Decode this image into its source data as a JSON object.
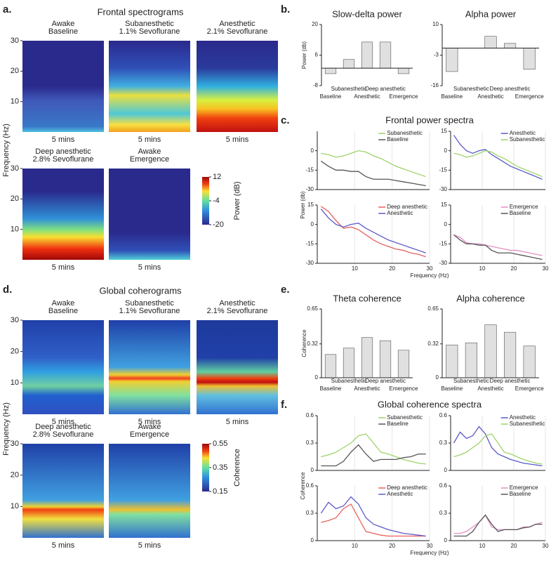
{
  "chart_data": [
    {
      "type": "heatmap",
      "label": "a.",
      "title": "Frontal spectrograms",
      "panels": [
        {
          "title": [
            "Awake",
            "Baseline"
          ]
        },
        {
          "title": [
            "Subanesthetic",
            "1.1% Sevoflurane"
          ]
        },
        {
          "title": [
            "Anesthetic",
            "2.1% Sevoflurane"
          ]
        },
        {
          "title": [
            "Deep anesthetic",
            "2.8% Sevoflurane"
          ]
        },
        {
          "title": [
            "Awake",
            "Emergence"
          ]
        }
      ],
      "xlabel": "5 mins",
      "ylabel": "Frequency (Hz)",
      "ylim": [
        0,
        30
      ],
      "yticks": [
        10,
        20,
        30
      ],
      "colorbar": {
        "label": "Power (dB)",
        "ticks": [
          -20,
          -4,
          12
        ]
      }
    },
    {
      "type": "bar",
      "label": "b.",
      "ylabel": "Power (db)",
      "categories": [
        "Baseline",
        "Subanesthetic",
        "Anesthetic",
        "Deep anesthetic",
        "Emergence"
      ],
      "panels": [
        {
          "title": "Slow-delta power",
          "ylim": [
            -8,
            20
          ],
          "yticks": [
            -8,
            6,
            20
          ],
          "values": [
            -2.5,
            4,
            12,
            12,
            -2.5
          ]
        },
        {
          "title": "Alpha power",
          "ylim": [
            -16,
            10
          ],
          "yticks": [
            -16,
            -3,
            10
          ],
          "values": [
            -10,
            0,
            5,
            2,
            -9
          ]
        }
      ]
    },
    {
      "type": "line",
      "label": "c.",
      "title": "Frontal power spectra",
      "ylabel": "Power (db)",
      "xlabel": "Frequency (Hz)",
      "xlim": [
        0,
        30
      ],
      "xticks": [
        10,
        20,
        30
      ],
      "grid": true,
      "x": [
        1,
        3,
        5,
        7,
        9,
        11,
        13,
        15,
        17,
        19,
        21,
        23,
        25,
        27,
        29
      ],
      "panels": [
        {
          "ylim": [
            -30,
            15
          ],
          "yticks": [
            -30,
            -15,
            0
          ],
          "series": [
            {
              "name": "Subanesthetic",
              "color": "#9ed36b",
              "values": [
                -2,
                -3,
                -5,
                -4,
                -2,
                0,
                -1,
                -4,
                -6,
                -9,
                -12,
                -14,
                -16,
                -18,
                -20
              ]
            },
            {
              "name": "Baseline",
              "color": "#555555",
              "values": [
                -8,
                -12,
                -15,
                -15,
                -16,
                -16,
                -20,
                -22,
                -22,
                -22,
                -23,
                -24,
                -25,
                -26,
                -27
              ]
            }
          ]
        },
        {
          "ylim": [
            -30,
            15
          ],
          "yticks": [
            -30,
            -15,
            0,
            15
          ],
          "series": [
            {
              "name": "Anesthetic",
              "color": "#5a5ac8",
              "values": [
                12,
                5,
                0,
                -2,
                0,
                1,
                -3,
                -6,
                -9,
                -12,
                -14,
                -16,
                -18,
                -20,
                -22
              ]
            },
            {
              "name": "Subanesthetic",
              "color": "#9ed36b",
              "values": [
                -2,
                -3,
                -5,
                -4,
                -2,
                0,
                -1,
                -4,
                -6,
                -9,
                -12,
                -14,
                -16,
                -18,
                -20
              ]
            }
          ]
        },
        {
          "ylim": [
            -30,
            15
          ],
          "yticks": [
            -30,
            -15,
            0,
            15
          ],
          "series": [
            {
              "name": "Deep anesthetic",
              "color": "#e8605e",
              "values": [
                14,
                10,
                3,
                -3,
                -2,
                -4,
                -8,
                -12,
                -15,
                -17,
                -19,
                -20,
                -22,
                -23,
                -25
              ]
            },
            {
              "name": "Anesthetic",
              "color": "#5a5ac8",
              "values": [
                12,
                5,
                0,
                -2,
                0,
                1,
                -3,
                -6,
                -9,
                -12,
                -14,
                -16,
                -18,
                -20,
                -22
              ]
            }
          ]
        },
        {
          "ylim": [
            -30,
            15
          ],
          "yticks": [
            -30,
            -15,
            0,
            15
          ],
          "series": [
            {
              "name": "Emergence",
              "color": "#e58fc6",
              "values": [
                -8,
                -10,
                -14,
                -15,
                -15,
                -16,
                -17,
                -18,
                -19,
                -20,
                -20,
                -21,
                -22,
                -23,
                -24
              ]
            },
            {
              "name": "Baseline",
              "color": "#555555",
              "values": [
                -8,
                -12,
                -15,
                -15,
                -16,
                -16,
                -20,
                -22,
                -22,
                -22,
                -23,
                -24,
                -25,
                -26,
                -27
              ]
            }
          ]
        }
      ]
    },
    {
      "type": "heatmap",
      "label": "d.",
      "title": "Global coherograms",
      "panels": [
        {
          "title": [
            "Awake",
            "Baseline"
          ]
        },
        {
          "title": [
            "Subanesthetic",
            "1.1% Sevoflurane"
          ]
        },
        {
          "title": [
            "Anesthetic",
            "2.1% Sevoflurane"
          ]
        },
        {
          "title": [
            "Deep anesthetic",
            "2.8% Sevoflurane"
          ]
        },
        {
          "title": [
            "Awake",
            "Emergence"
          ]
        }
      ],
      "xlabel": "5 mins",
      "ylabel": "Frequency (Hz)",
      "ylim": [
        0,
        30
      ],
      "yticks": [
        10,
        20,
        30
      ],
      "colorbar": {
        "label": "Coherence",
        "ticks": [
          0.15,
          0.35,
          0.55
        ]
      }
    },
    {
      "type": "bar",
      "label": "e.",
      "ylabel": "Coherence",
      "categories": [
        "Baseline",
        "Subanesthetic",
        "Anesthetic",
        "Deep anesthetic",
        "Emergence"
      ],
      "panels": [
        {
          "title": "Theta coherence",
          "ylim": [
            0,
            0.65
          ],
          "yticks": [
            0,
            0.32,
            0.65
          ],
          "values": [
            0.22,
            0.28,
            0.38,
            0.35,
            0.26
          ]
        },
        {
          "title": "Alpha coherence",
          "ylim": [
            0,
            0.65
          ],
          "yticks": [
            0,
            0.32,
            0.65
          ],
          "values": [
            0.31,
            0.33,
            0.5,
            0.43,
            0.3
          ]
        }
      ]
    },
    {
      "type": "line",
      "label": "f.",
      "title": "Global coherence spectra",
      "ylabel": "Coherence",
      "xlabel": "Frequency (Hz)",
      "xlim": [
        0,
        30
      ],
      "xticks": [
        10,
        20,
        30
      ],
      "grid": true,
      "x": [
        1,
        3,
        5,
        7,
        9,
        11,
        13,
        15,
        17,
        19,
        21,
        23,
        25,
        27,
        29
      ],
      "panels": [
        {
          "ylim": [
            0,
            0.6
          ],
          "yticks": [
            0,
            0.3,
            0.6
          ],
          "series": [
            {
              "name": "Subanesthetic",
              "color": "#9ed36b",
              "values": [
                0.15,
                0.17,
                0.2,
                0.25,
                0.3,
                0.38,
                0.4,
                0.3,
                0.2,
                0.18,
                0.15,
                0.12,
                0.1,
                0.08,
                0.07
              ]
            },
            {
              "name": "Baseline",
              "color": "#555555",
              "values": [
                0.05,
                0.05,
                0.05,
                0.1,
                0.2,
                0.28,
                0.18,
                0.1,
                0.12,
                0.12,
                0.12,
                0.14,
                0.15,
                0.18,
                0.18
              ]
            }
          ]
        },
        {
          "ylim": [
            0,
            0.6
          ],
          "yticks": [
            0,
            0.3,
            0.6
          ],
          "series": [
            {
              "name": "Anesthetic",
              "color": "#5a5ac8",
              "values": [
                0.3,
                0.42,
                0.35,
                0.38,
                0.48,
                0.4,
                0.25,
                0.18,
                0.15,
                0.12,
                0.1,
                0.08,
                0.07,
                0.06,
                0.05
              ]
            },
            {
              "name": "Subanesthetic",
              "color": "#9ed36b",
              "values": [
                0.15,
                0.17,
                0.2,
                0.25,
                0.3,
                0.38,
                0.4,
                0.3,
                0.2,
                0.18,
                0.15,
                0.12,
                0.1,
                0.08,
                0.07
              ]
            }
          ]
        },
        {
          "ylim": [
            0,
            0.6
          ],
          "yticks": [
            0,
            0.3,
            0.6
          ],
          "series": [
            {
              "name": "Deep anesthetic",
              "color": "#e8605e",
              "values": [
                0.2,
                0.22,
                0.25,
                0.35,
                0.4,
                0.25,
                0.1,
                0.08,
                0.06,
                0.05,
                0.05,
                0.05,
                0.05,
                0.05,
                0.05
              ]
            },
            {
              "name": "Anesthetic",
              "color": "#5a5ac8",
              "values": [
                0.3,
                0.42,
                0.35,
                0.38,
                0.48,
                0.4,
                0.25,
                0.18,
                0.15,
                0.12,
                0.1,
                0.08,
                0.07,
                0.06,
                0.05
              ]
            }
          ]
        },
        {
          "ylim": [
            0,
            0.6
          ],
          "yticks": [
            0,
            0.3,
            0.6
          ],
          "series": [
            {
              "name": "Emergence",
              "color": "#e58fc6",
              "values": [
                0.08,
                0.08,
                0.1,
                0.15,
                0.2,
                0.28,
                0.15,
                0.12,
                0.12,
                0.12,
                0.12,
                0.15,
                0.15,
                0.18,
                0.2
              ]
            },
            {
              "name": "Baseline",
              "color": "#555555",
              "values": [
                0.05,
                0.05,
                0.05,
                0.1,
                0.2,
                0.28,
                0.18,
                0.1,
                0.12,
                0.12,
                0.12,
                0.14,
                0.15,
                0.18,
                0.18
              ]
            }
          ]
        }
      ]
    }
  ]
}
